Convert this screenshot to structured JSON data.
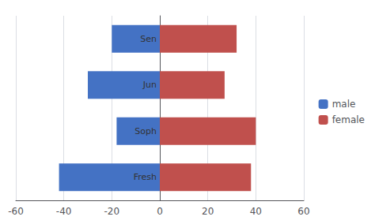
{
  "chart_data": {
    "type": "bar",
    "orientation": "horizontal",
    "stacked": true,
    "categories": [
      "Fresh",
      "Soph",
      "Jun",
      "Sen"
    ],
    "series": [
      {
        "name": "male",
        "color": "#4472C4",
        "values": [
          -42,
          -18,
          -30,
          -20
        ]
      },
      {
        "name": "female",
        "color": "#C0504D",
        "values": [
          38,
          40,
          27,
          32
        ]
      }
    ],
    "xlim": [
      -60,
      60
    ],
    "xticks": [
      -60,
      -40,
      -20,
      0,
      20,
      40,
      60
    ],
    "grid": true,
    "legend": "right",
    "tick_labels": "x"
  }
}
